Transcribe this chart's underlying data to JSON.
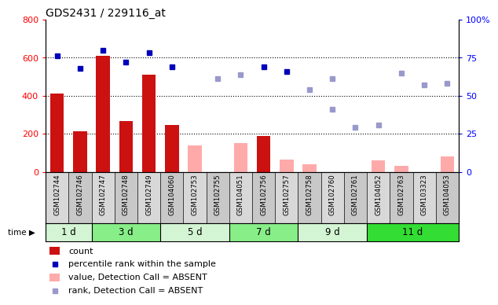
{
  "title": "GDS2431 / 229116_at",
  "samples": [
    "GSM102744",
    "GSM102746",
    "GSM102747",
    "GSM102748",
    "GSM102749",
    "GSM104060",
    "GSM102753",
    "GSM102755",
    "GSM104051",
    "GSM102756",
    "GSM102757",
    "GSM102758",
    "GSM102760",
    "GSM102761",
    "GSM104052",
    "GSM102763",
    "GSM103323",
    "GSM104053"
  ],
  "time_groups": [
    {
      "label": "1 d",
      "start": 0,
      "end": 2,
      "color": "#d4f5d4"
    },
    {
      "label": "3 d",
      "start": 2,
      "end": 5,
      "color": "#88ee88"
    },
    {
      "label": "5 d",
      "start": 5,
      "end": 8,
      "color": "#d4f5d4"
    },
    {
      "label": "7 d",
      "start": 8,
      "end": 11,
      "color": "#88ee88"
    },
    {
      "label": "9 d",
      "start": 11,
      "end": 14,
      "color": "#d4f5d4"
    },
    {
      "label": "11 d",
      "start": 14,
      "end": 18,
      "color": "#33dd33"
    }
  ],
  "count_present": [
    410,
    215,
    610,
    265,
    510,
    245,
    null,
    null,
    null,
    190,
    null,
    null,
    null,
    null,
    null,
    null,
    null,
    null
  ],
  "count_absent": [
    null,
    null,
    null,
    null,
    null,
    null,
    140,
    null,
    150,
    null,
    65,
    40,
    null,
    null,
    60,
    30,
    null,
    80
  ],
  "rank_present": [
    76,
    68,
    80,
    72,
    78,
    69,
    null,
    null,
    null,
    69,
    66,
    null,
    null,
    null,
    null,
    null,
    null,
    null
  ],
  "rank_absent": [
    null,
    null,
    null,
    null,
    null,
    null,
    null,
    61,
    64,
    null,
    null,
    54,
    61,
    29,
    31,
    65,
    57,
    58
  ],
  "rank_absent2": [
    null,
    null,
    null,
    null,
    null,
    null,
    null,
    null,
    null,
    null,
    null,
    null,
    41,
    null,
    null,
    null,
    null,
    null
  ],
  "ylim_left": [
    0,
    800
  ],
  "ylim_right": [
    0,
    100
  ],
  "yticks_left": [
    0,
    200,
    400,
    600,
    800
  ],
  "ytick_right_labels": [
    "0",
    "25",
    "50",
    "75",
    "100%"
  ],
  "yticks_right": [
    0,
    25,
    50,
    75,
    100
  ],
  "bar_color_present": "#cc1111",
  "bar_color_absent": "#ffaaaa",
  "dot_color_present": "#0000bb",
  "dot_color_absent": "#9999cc",
  "col_bg_even": "#d8d8d8",
  "col_bg_odd": "#c8c8c8",
  "plot_bg": "#ffffff",
  "legend_items": [
    {
      "color": "#cc1111",
      "is_rect": true,
      "label": "count"
    },
    {
      "color": "#0000bb",
      "is_rect": false,
      "label": "percentile rank within the sample"
    },
    {
      "color": "#ffaaaa",
      "is_rect": true,
      "label": "value, Detection Call = ABSENT"
    },
    {
      "color": "#9999cc",
      "is_rect": false,
      "label": "rank, Detection Call = ABSENT"
    }
  ]
}
